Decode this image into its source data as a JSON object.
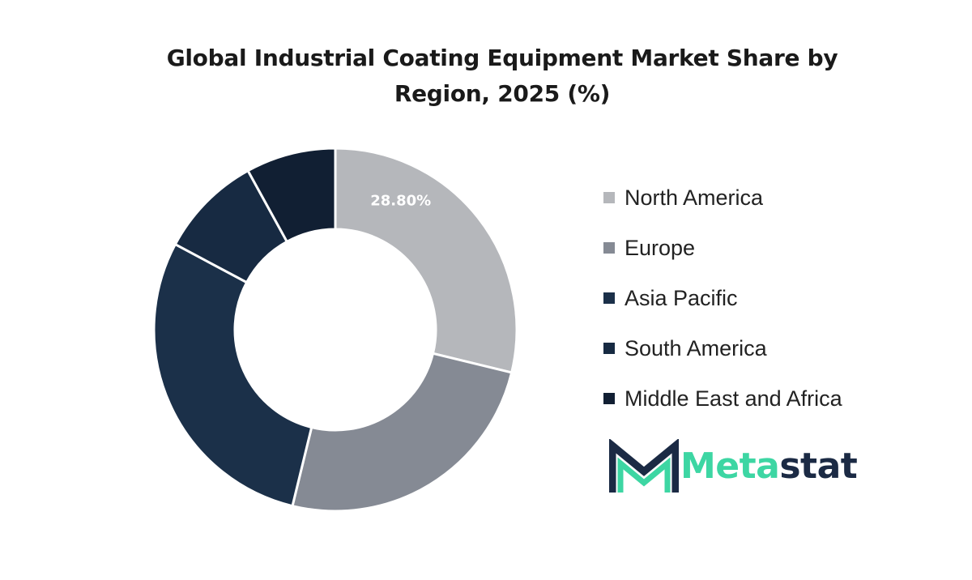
{
  "chart_data": {
    "type": "pie",
    "variant": "donut",
    "title": "Global Industrial Coating Equipment Market Share by Region, 2025 (%)",
    "categories": [
      "North America",
      "Europe",
      "Asia Pacific",
      "South America",
      "Middle East and Africa"
    ],
    "values": [
      28.8,
      25.0,
      29.0,
      9.2,
      8.0
    ],
    "colors": [
      "#b5b7bb",
      "#858a94",
      "#1b3049",
      "#172a42",
      "#111f33"
    ],
    "data_labels": [
      "28.80%",
      "",
      "",
      "",
      ""
    ],
    "label_color": "#ffffff",
    "legend_position": "right"
  },
  "logo": {
    "text_part1": "Meta",
    "text_part2": "stat",
    "color_primary": "#1b2a44",
    "color_accent": "#3dd6a3"
  }
}
